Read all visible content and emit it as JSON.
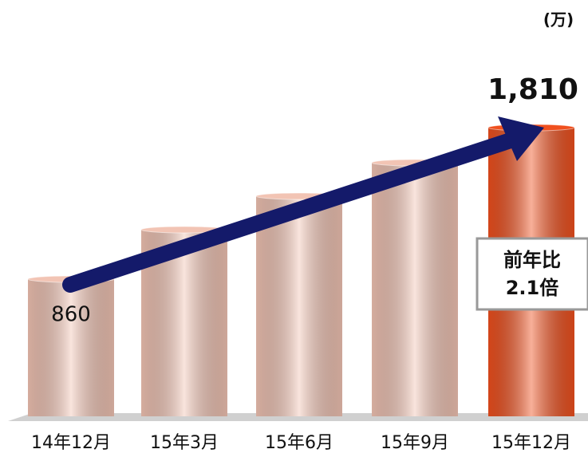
{
  "chart_data": {
    "type": "bar",
    "unit": "(万)",
    "categories": [
      "14年12月",
      "15年3月",
      "15年6月",
      "15年9月",
      "15年12月"
    ],
    "values": [
      860,
      1170,
      1380,
      1590,
      1810
    ],
    "value_labels": [
      "860",
      null,
      null,
      null,
      "1,810"
    ],
    "colors": [
      "#f2c4b4",
      "#f2c4b4",
      "#f2c4b4",
      "#f2c4b4",
      "#f0501e"
    ],
    "ylim": [
      0,
      1900
    ],
    "annotation": [
      "前年比",
      "2.1倍"
    ]
  }
}
